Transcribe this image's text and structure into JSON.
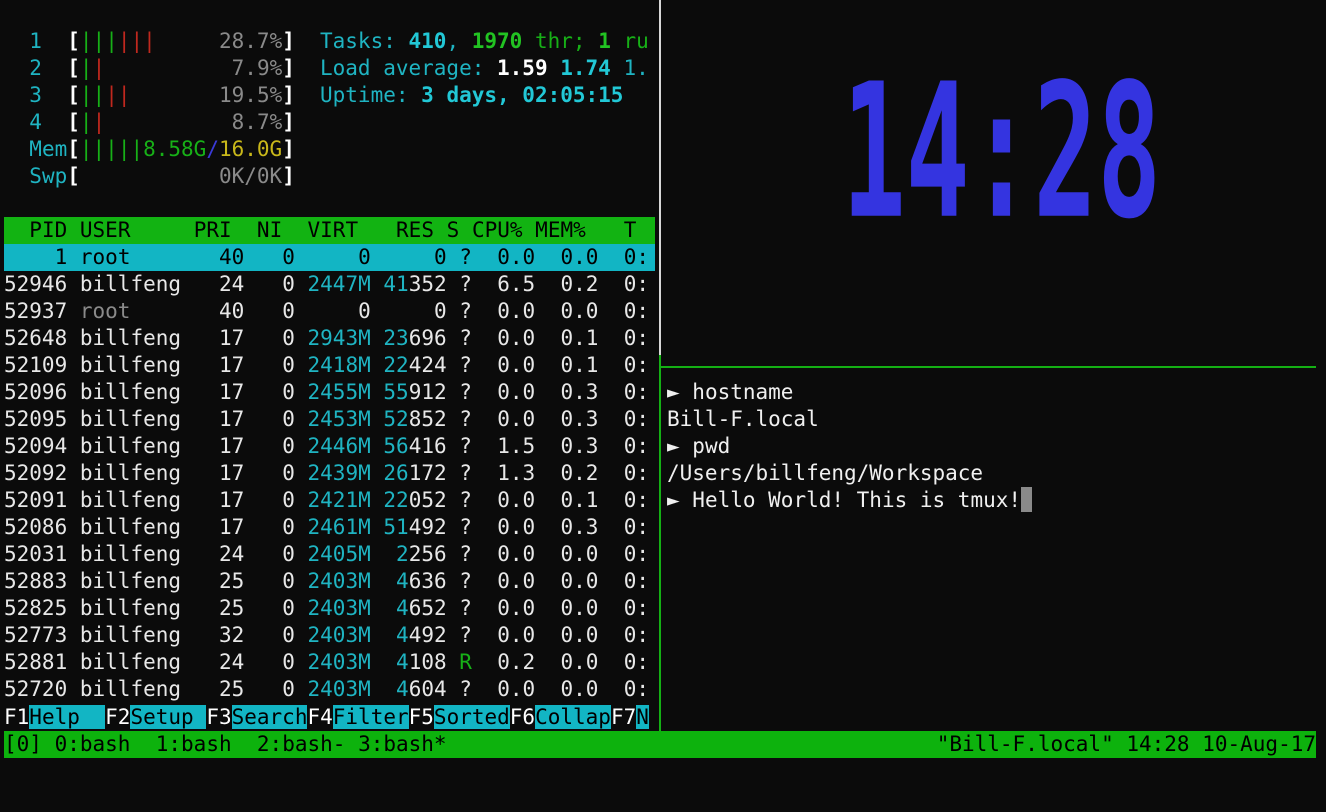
{
  "colors": {
    "accent_green": "#12b312",
    "accent_cyan": "#12b5c4",
    "clock_blue": "#3434e0",
    "background": "#0b0b0b"
  },
  "meters": {
    "cpus": [
      {
        "label": "1",
        "percent": "28.7%",
        "bars_green": 3,
        "bars_red": 3
      },
      {
        "label": "2",
        "percent": "7.9%",
        "bars_green": 1,
        "bars_red": 1
      },
      {
        "label": "3",
        "percent": "19.5%",
        "bars_green": 2,
        "bars_red": 2
      },
      {
        "label": "4",
        "percent": "8.7%",
        "bars_green": 1,
        "bars_red": 1
      }
    ],
    "mem": {
      "label": "Mem",
      "used": "8.58G",
      "sep": "/",
      "total": "16.0G",
      "bars": 5
    },
    "swp": {
      "label": "Swp",
      "value": "0K/0K"
    }
  },
  "summary": {
    "tasks_label": "Tasks: ",
    "tasks": "410",
    "comma": ", ",
    "threads": "1970",
    "thr_label": " thr; ",
    "running": "1",
    "running_label": " ru",
    "load_label": "Load average: ",
    "load1": "1.59",
    "load5": "1.74",
    "load15": "1.",
    "uptime_label": "Uptime: ",
    "uptime": "3 days, 02:05:15"
  },
  "table": {
    "columns": [
      "PID",
      "USER",
      "PRI",
      "NI",
      "VIRT",
      "RES",
      "S",
      "CPU%",
      "MEM%",
      "T"
    ],
    "rows": [
      {
        "pid": "1",
        "user": "root",
        "pri": "40",
        "ni": "0",
        "virt": "0",
        "res": "0",
        "s": "?",
        "cpu": "0.0",
        "mem": "0.0",
        "time": "0:",
        "selected": true
      },
      {
        "pid": "52946",
        "user": "billfeng",
        "pri": "24",
        "ni": "0",
        "virt": "2447M",
        "res": "41352",
        "s": "?",
        "cpu": "6.5",
        "mem": "0.2",
        "time": "0:"
      },
      {
        "pid": "52937",
        "user": "root",
        "pri": "40",
        "ni": "0",
        "virt": "0",
        "res": "0",
        "s": "?",
        "cpu": "0.0",
        "mem": "0.0",
        "time": "0:",
        "dim_user": true
      },
      {
        "pid": "52648",
        "user": "billfeng",
        "pri": "17",
        "ni": "0",
        "virt": "2943M",
        "res": "23696",
        "s": "?",
        "cpu": "0.0",
        "mem": "0.1",
        "time": "0:"
      },
      {
        "pid": "52109",
        "user": "billfeng",
        "pri": "17",
        "ni": "0",
        "virt": "2418M",
        "res": "22424",
        "s": "?",
        "cpu": "0.0",
        "mem": "0.1",
        "time": "0:"
      },
      {
        "pid": "52096",
        "user": "billfeng",
        "pri": "17",
        "ni": "0",
        "virt": "2455M",
        "res": "55912",
        "s": "?",
        "cpu": "0.0",
        "mem": "0.3",
        "time": "0:"
      },
      {
        "pid": "52095",
        "user": "billfeng",
        "pri": "17",
        "ni": "0",
        "virt": "2453M",
        "res": "52852",
        "s": "?",
        "cpu": "0.0",
        "mem": "0.3",
        "time": "0:"
      },
      {
        "pid": "52094",
        "user": "billfeng",
        "pri": "17",
        "ni": "0",
        "virt": "2446M",
        "res": "56416",
        "s": "?",
        "cpu": "1.5",
        "mem": "0.3",
        "time": "0:"
      },
      {
        "pid": "52092",
        "user": "billfeng",
        "pri": "17",
        "ni": "0",
        "virt": "2439M",
        "res": "26172",
        "s": "?",
        "cpu": "1.3",
        "mem": "0.2",
        "time": "0:"
      },
      {
        "pid": "52091",
        "user": "billfeng",
        "pri": "17",
        "ni": "0",
        "virt": "2421M",
        "res": "22052",
        "s": "?",
        "cpu": "0.0",
        "mem": "0.1",
        "time": "0:"
      },
      {
        "pid": "52086",
        "user": "billfeng",
        "pri": "17",
        "ni": "0",
        "virt": "2461M",
        "res": "51492",
        "s": "?",
        "cpu": "0.0",
        "mem": "0.3",
        "time": "0:"
      },
      {
        "pid": "52031",
        "user": "billfeng",
        "pri": "24",
        "ni": "0",
        "virt": "2405M",
        "res": "2256",
        "s": "?",
        "cpu": "0.0",
        "mem": "0.0",
        "time": "0:"
      },
      {
        "pid": "52883",
        "user": "billfeng",
        "pri": "25",
        "ni": "0",
        "virt": "2403M",
        "res": "4636",
        "s": "?",
        "cpu": "0.0",
        "mem": "0.0",
        "time": "0:"
      },
      {
        "pid": "52825",
        "user": "billfeng",
        "pri": "25",
        "ni": "0",
        "virt": "2403M",
        "res": "4652",
        "s": "?",
        "cpu": "0.0",
        "mem": "0.0",
        "time": "0:"
      },
      {
        "pid": "52773",
        "user": "billfeng",
        "pri": "32",
        "ni": "0",
        "virt": "2403M",
        "res": "4492",
        "s": "?",
        "cpu": "0.0",
        "mem": "0.0",
        "time": "0:"
      },
      {
        "pid": "52881",
        "user": "billfeng",
        "pri": "24",
        "ni": "0",
        "virt": "2403M",
        "res": "4108",
        "s": "R",
        "cpu": "0.2",
        "mem": "0.0",
        "time": "0:"
      },
      {
        "pid": "52720",
        "user": "billfeng",
        "pri": "25",
        "ni": "0",
        "virt": "2403M",
        "res": "4604",
        "s": "?",
        "cpu": "0.0",
        "mem": "0.0",
        "time": "0:"
      }
    ]
  },
  "function_keys": [
    {
      "key": "F1",
      "label": "Help  "
    },
    {
      "key": "F2",
      "label": "Setup "
    },
    {
      "key": "F3",
      "label": "Search"
    },
    {
      "key": "F4",
      "label": "Filter"
    },
    {
      "key": "F5",
      "label": "Sorted"
    },
    {
      "key": "F6",
      "label": "Collap"
    },
    {
      "key": "F7",
      "label": "N"
    }
  ],
  "clock": {
    "time": "14:28"
  },
  "shell": {
    "lines": [
      {
        "prompt": "► ",
        "text": "hostname"
      },
      {
        "prompt": "",
        "text": "Bill-F.local"
      },
      {
        "prompt": "► ",
        "text": "pwd"
      },
      {
        "prompt": "",
        "text": "/Users/billfeng/Workspace"
      },
      {
        "prompt": "► ",
        "text": "Hello World! This is tmux!"
      }
    ]
  },
  "status_bar": {
    "session": "[0]",
    "windows": [
      {
        "label": "0:bash"
      },
      {
        "label": "1:bash"
      },
      {
        "label": "2:bash-"
      },
      {
        "label": "3:bash*"
      }
    ],
    "right": "\"Bill-F.local\" 14:28 10-Aug-17"
  }
}
